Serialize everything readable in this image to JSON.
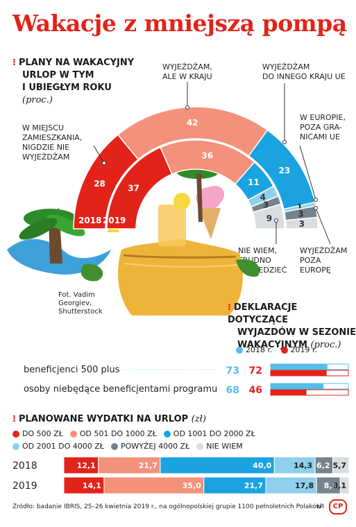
{
  "title": "Wakacje z mniejszą pompą",
  "section1": {
    "heading_lines": [
      "Plany na wakacyjny",
      "urlop w tym",
      "i ubiegłym roku"
    ],
    "unit": "(proc.)",
    "year_2018": "2018",
    "year_2019": "2019",
    "categories": [
      {
        "label": "W MIEJSCU ZAMIESZKANIA, NIGDZIE NIE WYJEŻDŻAM",
        "lines": [
          "W MIEJSCU",
          "ZAMIESZKANIA,",
          "NIGDZIE NIE",
          "WYJEŻDŻAM"
        ],
        "v2018": 28,
        "v2019": 37
      },
      {
        "label": "WYJEŻDŻAM, ALE W KRAJU",
        "lines": [
          "WYJEŻDŻAM,",
          "ALE W KRAJU"
        ],
        "v2018": 42,
        "v2019": 36
      },
      {
        "label": "WYJEŻDŻAM DO INNEGO KRAJU UE",
        "lines": [
          "WYJEŻDŻAM",
          "DO INNEGO KRAJU UE"
        ],
        "v2018": 23,
        "v2019": 11
      },
      {
        "label": "W EUROPIE, POZA GRANICAMI UE",
        "lines": [
          "W EUROPIE,",
          "POZA GRA-",
          "NICAMI UE"
        ],
        "v2018": 1,
        "v2019": 4
      },
      {
        "label": "WYJEŻDŻAM POZA EUROPĘ",
        "lines": [
          "WYJEŻDŻAM",
          "POZA",
          "EUROPĘ"
        ],
        "v2018": 3,
        "v2019": 3
      },
      {
        "label": "NIE WIEM, TRUDNO POWIEDZIEĆ",
        "lines": [
          "NIE WIEM,",
          "TRUDNO",
          "POWIEDZIEĆ"
        ],
        "v2018": 3,
        "v2019": 9
      }
    ],
    "colors": [
      "#e2231a",
      "#f4917a",
      "#1aa3e0",
      "#8ed0ee",
      "#77838c",
      "#d9dde0"
    ]
  },
  "photo_credit": [
    "Fot. Vadim",
    "Georgiev,",
    "Shutterstock"
  ],
  "section2": {
    "heading_lines": [
      "Deklaracje dotyczące",
      "wyjazdów w sezonie",
      "wakacyjnym"
    ],
    "unit": "(proc.)",
    "legend": [
      {
        "label": "2018 r.",
        "color": "#55bde9"
      },
      {
        "label": "2019 r.",
        "color": "#e2231a"
      }
    ],
    "rows": [
      {
        "label": "beneficjenci 500 plus",
        "v2018": 73,
        "v2019": 72
      },
      {
        "label": "osoby niebędące beneficjentami programu",
        "v2018": 68,
        "v2019": 46
      }
    ]
  },
  "section3": {
    "heading": "Planowane wydatki na urlop",
    "unit": "(zł)",
    "legend": [
      {
        "label": "DO 500 ZŁ",
        "color": "#e2231a"
      },
      {
        "label": "OD 501 DO 1000 ZŁ",
        "color": "#f4917a"
      },
      {
        "label": "OD 1001 DO 2000 ZŁ",
        "color": "#1aa3e0"
      },
      {
        "label": "OD 2001 DO 4000 ZŁ",
        "color": "#8ed0ee"
      },
      {
        "label": "POWYŻEJ 4000 ZŁ",
        "color": "#77838c"
      },
      {
        "label": "NIE WIEM",
        "color": "#d9dde0"
      }
    ]
  },
  "chart_data": [
    {
      "type": "pie",
      "title": "Plany na wakacyjny urlop w tym i ubiegłym roku (proc.)",
      "categories": [
        "W MIEJSCU ZAMIESZKANIA, NIGDZIE NIE WYJEŻDŻAM",
        "WYJEŻDŻAM, ALE W KRAJU",
        "WYJEŻDŻAM DO INNEGO KRAJU UE",
        "W EUROPIE, POZA GRANICAMI UE",
        "WYJEŻDŻAM POZA EUROPĘ",
        "NIE WIEM, TRUDNO POWIEDZIEĆ"
      ],
      "series": [
        {
          "name": "2018",
          "values": [
            28,
            42,
            23,
            1,
            3,
            3
          ]
        },
        {
          "name": "2019",
          "values": [
            37,
            36,
            11,
            4,
            3,
            9
          ]
        }
      ]
    },
    {
      "type": "bar",
      "title": "Deklaracje dotyczące wyjazdów w sezonie wakacyjnym (proc.)",
      "categories": [
        "beneficjenci 500 plus",
        "osoby niebędące beneficjentami programu"
      ],
      "series": [
        {
          "name": "2018 r.",
          "values": [
            73,
            68
          ]
        },
        {
          "name": "2019 r.",
          "values": [
            72,
            46
          ]
        }
      ],
      "ylim": [
        0,
        100
      ]
    },
    {
      "type": "bar",
      "title": "Planowane wydatki na urlop (zł)",
      "categories": [
        "2018",
        "2019"
      ],
      "series": [
        {
          "name": "DO 500 ZŁ",
          "values": [
            12.1,
            14.1
          ],
          "labels": [
            "12,1",
            "14,1"
          ]
        },
        {
          "name": "OD 501 DO 1000 ZŁ",
          "values": [
            21.7,
            35.0
          ],
          "labels": [
            "21,7",
            "35,0"
          ]
        },
        {
          "name": "OD 1001 DO 2000 ZŁ",
          "values": [
            40.0,
            21.7
          ],
          "labels": [
            "40,0",
            "21,7"
          ]
        },
        {
          "name": "OD 2001 DO 4000 ZŁ",
          "values": [
            14.3,
            17.8
          ],
          "labels": [
            "14,3",
            "17,8"
          ]
        },
        {
          "name": "POWYŻEJ 4000 ZŁ",
          "values": [
            6.2,
            8.3
          ],
          "labels": [
            "6,2",
            "8,3"
          ]
        },
        {
          "name": "NIE WIEM",
          "values": [
            5.7,
            3.1
          ],
          "labels": [
            "5,7",
            "3,1"
          ]
        }
      ]
    }
  ],
  "source": "Źródło: badanie IBRIS, 25–26 kwietnia 2019 r., na ogólnopolskiej grupie 1100 pełnoletnich Polaków",
  "author": "ŁR",
  "logo": "CP"
}
